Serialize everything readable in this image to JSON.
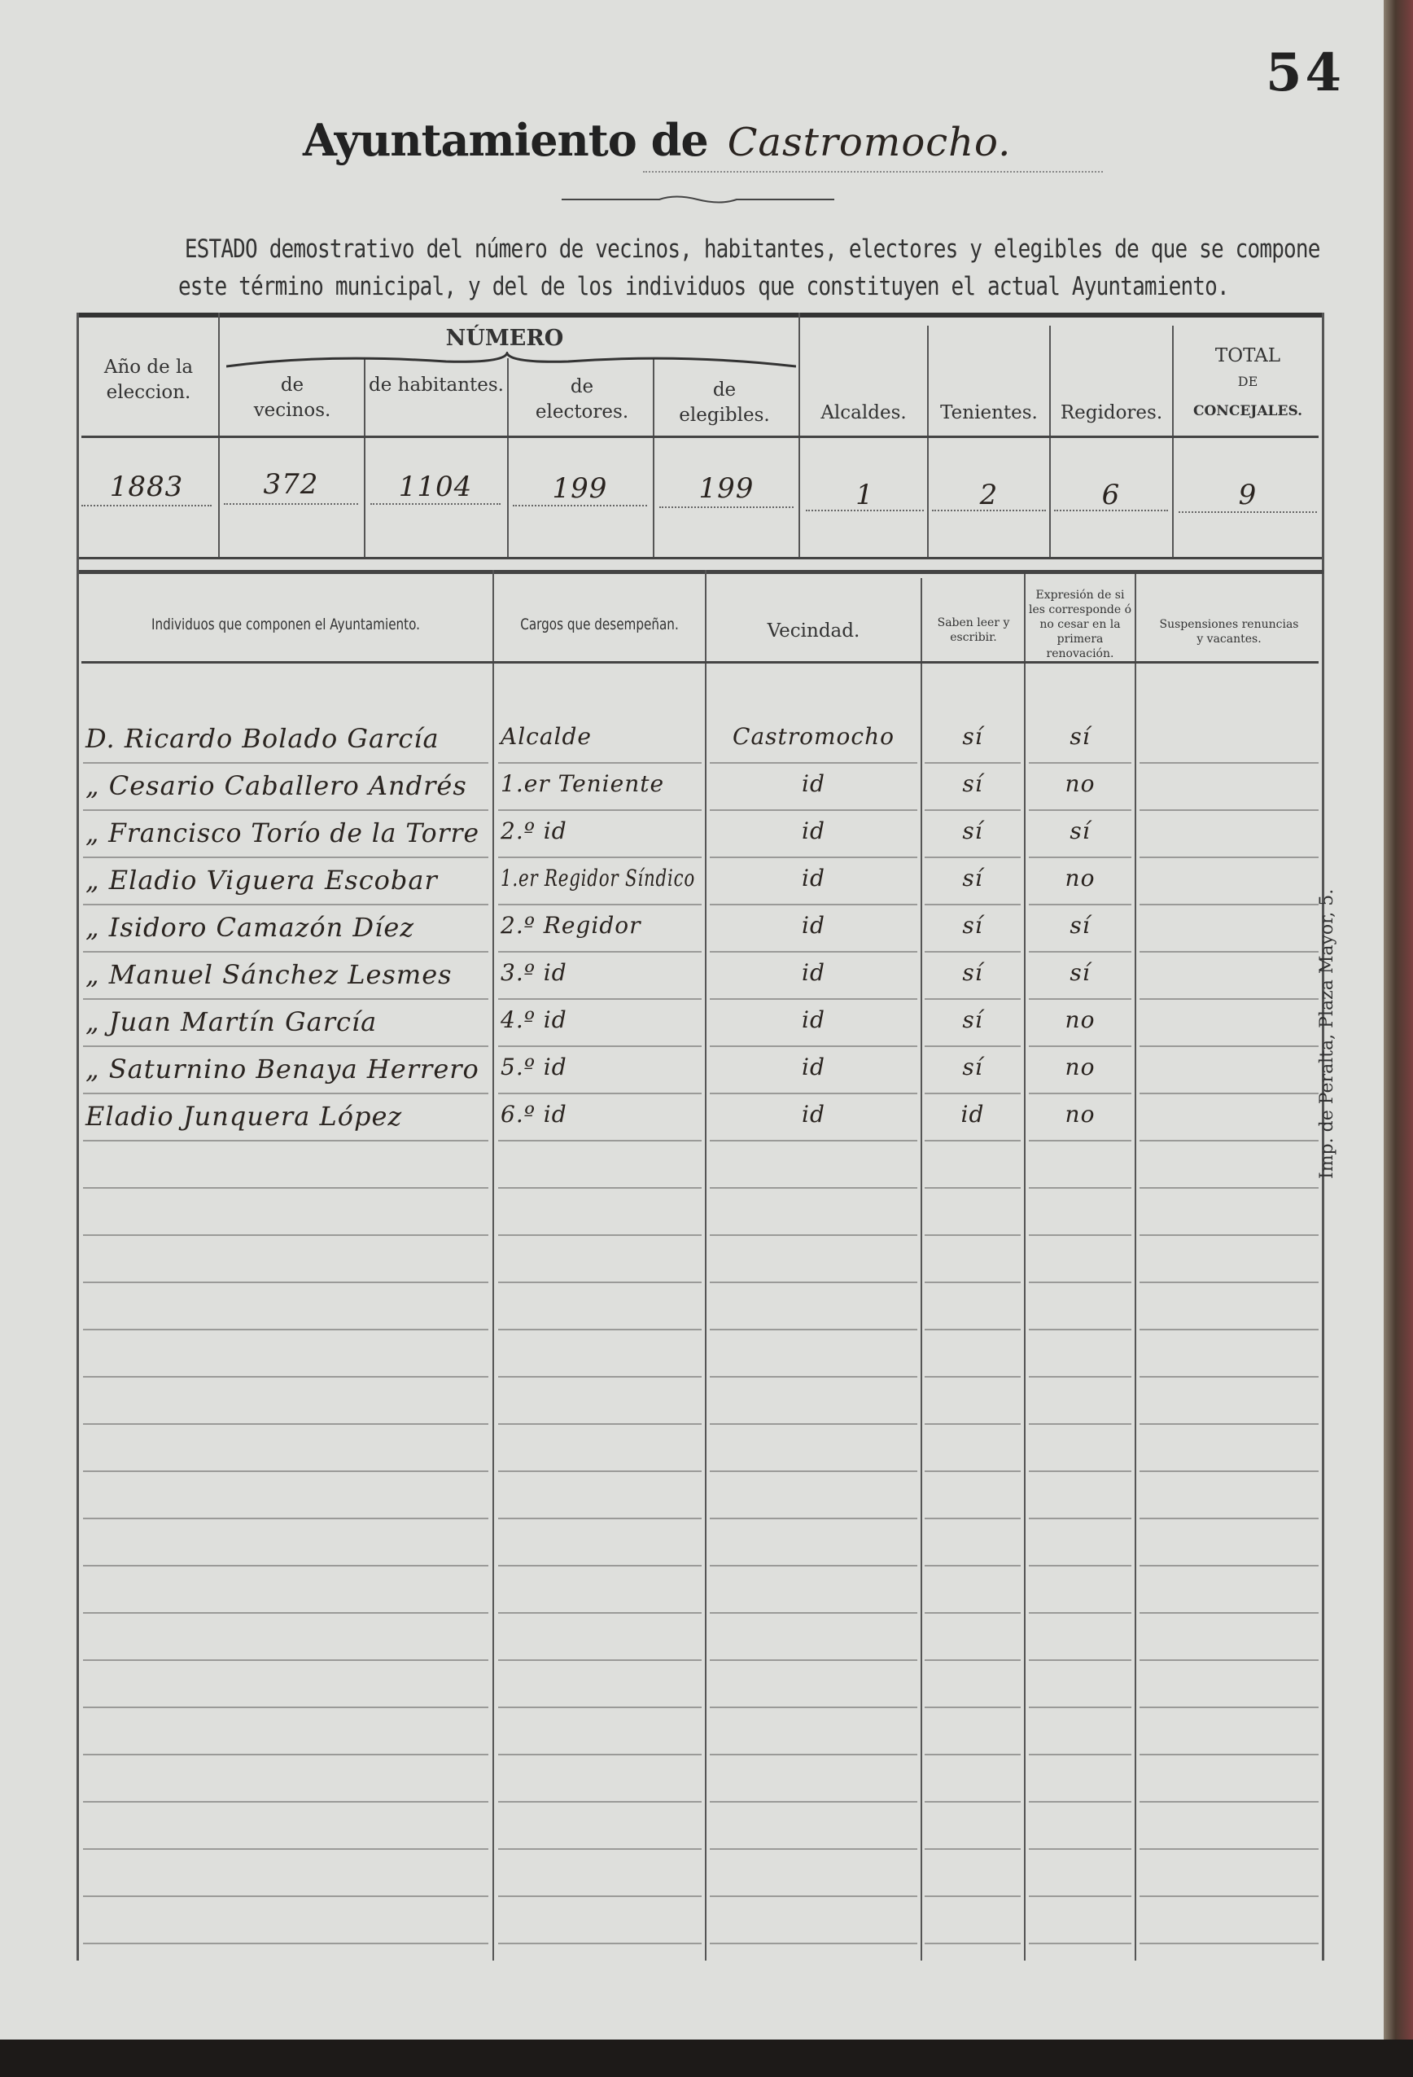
{
  "page_number": "54",
  "title": {
    "printed": "Ayuntamiento de",
    "handwritten": "Castromocho."
  },
  "heading": [
    "ESTADO demostrativo del número de vecinos, habitantes, electores y elegibles de que se compone",
    "este término municipal, y del de los individuos que constituyen el actual Ayuntamiento."
  ],
  "summary_table": {
    "group_header": "NÚMERO",
    "headers": {
      "year": "Año de la eleccion.",
      "vecinos": "de vecinos.",
      "habitantes": "de habitantes.",
      "electores": "de electores.",
      "elegibles": "de elegibles.",
      "alcaldes": "Alcaldes.",
      "tenientes": "Tenientes.",
      "regidores": "Regidores.",
      "total_top": "TOTAL",
      "total_de": "DE",
      "total_bottom": "CONCEJALES."
    },
    "row": {
      "year": "1883",
      "vecinos": "372",
      "habitantes": "1104",
      "electores": "199",
      "elegibles": "199",
      "alcaldes": "1",
      "tenientes": "2",
      "regidores": "6",
      "total": "9"
    }
  },
  "members_table": {
    "headers": {
      "individuos": "Individuos que componen el Ayuntamiento.",
      "cargos": "Cargos que desempeñan.",
      "vecindad": "Vecindad.",
      "saben": "Saben leer y escribir.",
      "expresion": "Expresión de si les corresponde ó no cesar en la primera renovación.",
      "suspensiones": "Suspensiones renuncias y vacantes."
    },
    "rows": [
      {
        "name": "D. Ricardo Bolado García",
        "cargo": "Alcalde",
        "vecindad": "Castromocho",
        "saben": "sí",
        "expresion": "sí"
      },
      {
        "name": "„ Cesario Caballero Andrés",
        "cargo": "1.er Teniente",
        "vecindad": "id",
        "saben": "sí",
        "expresion": "no"
      },
      {
        "name": "„ Francisco Torío de la Torre",
        "cargo": "2.º id",
        "vecindad": "id",
        "saben": "sí",
        "expresion": "sí"
      },
      {
        "name": "„ Eladio Viguera Escobar",
        "cargo": "1.er Regidor Síndico",
        "vecindad": "id",
        "saben": "sí",
        "expresion": "no"
      },
      {
        "name": "„ Isidoro Camazón Díez",
        "cargo": "2.º Regidor",
        "vecindad": "id",
        "saben": "sí",
        "expresion": "sí"
      },
      {
        "name": "„ Manuel Sánchez Lesmes",
        "cargo": "3.º id",
        "vecindad": "id",
        "saben": "sí",
        "expresion": "sí"
      },
      {
        "name": "„ Juan Martín García",
        "cargo": "4.º id",
        "vecindad": "id",
        "saben": "sí",
        "expresion": "no"
      },
      {
        "name": "„ Saturnino Benaya Herrero",
        "cargo": "5.º id",
        "vecindad": "id",
        "saben": "sí",
        "expresion": "no"
      },
      {
        "name": "Eladio Junquera López",
        "cargo": "6.º id",
        "vecindad": "id",
        "saben": "id",
        "expresion": "no"
      }
    ]
  },
  "printer_imprint": "Imp. de Peralta, Plaza Mayor, 5."
}
